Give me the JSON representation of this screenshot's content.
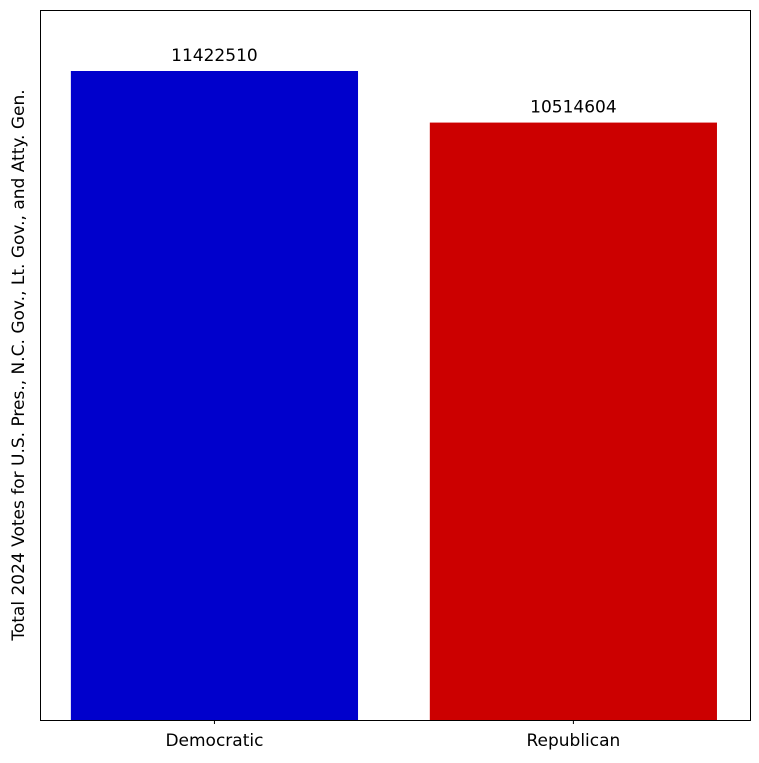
{
  "chart_data": {
    "type": "bar",
    "title": "",
    "xlabel": "",
    "ylabel": "Total 2024 Votes for U.S. Pres., N.C. Gov., Lt. Gov., and Atty. Gen.",
    "categories": [
      "Democratic",
      "Republican"
    ],
    "values": [
      11422510,
      10514604
    ],
    "data_labels": [
      "11422510",
      "10514604"
    ],
    "colors": [
      "#0000cc",
      "#cc0000"
    ],
    "ylim": [
      0,
      12496000
    ],
    "y_ticks_shown": false,
    "grid": false,
    "legend": "none"
  }
}
